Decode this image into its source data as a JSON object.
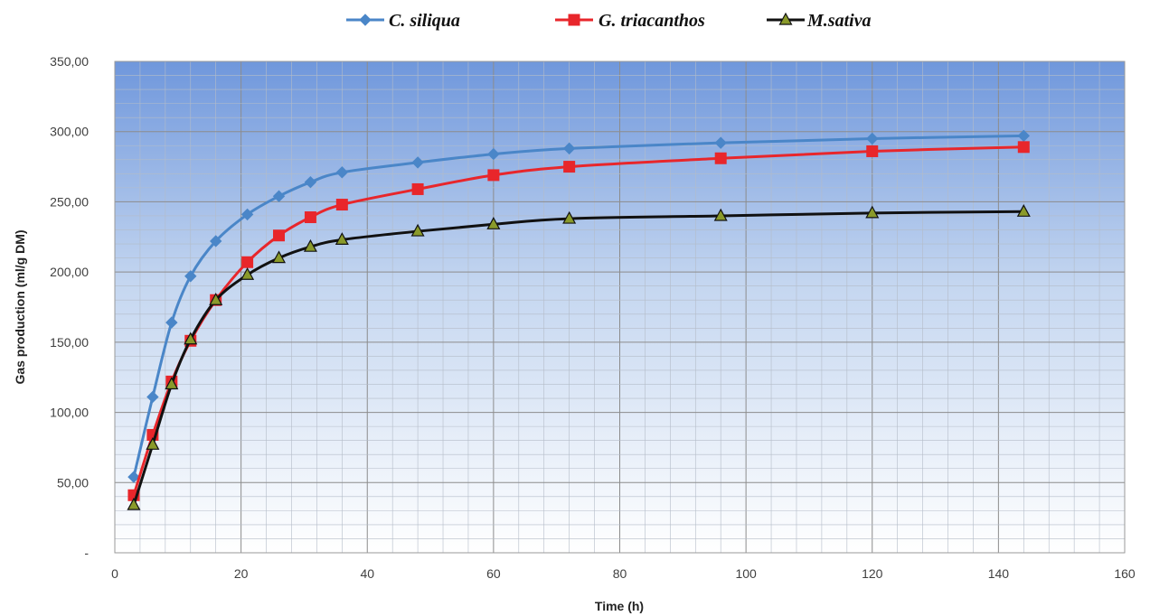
{
  "chart_data": {
    "type": "line",
    "title": "",
    "xlabel": "Time (h)",
    "ylabel": "Gas production  (ml/g DM)",
    "xlim": [
      0,
      160
    ],
    "ylim": [
      0,
      350
    ],
    "x_ticks": [
      0,
      20,
      40,
      60,
      80,
      100,
      120,
      140,
      160
    ],
    "x_tick_labels": [
      "0",
      "20",
      "40",
      "60",
      "80",
      "100",
      "120",
      "140",
      "160"
    ],
    "y_ticks": [
      0,
      50,
      100,
      150,
      200,
      250,
      300,
      350
    ],
    "y_tick_labels": [
      "-",
      "50,00",
      "100,00",
      "150,00",
      "200,00",
      "250,00",
      "300,00",
      "350,00"
    ],
    "grid": true,
    "legend_position": "top",
    "x": [
      3,
      6,
      9,
      12,
      16,
      21,
      26,
      31,
      36,
      48,
      60,
      72,
      96,
      120,
      144
    ],
    "series": [
      {
        "name": "C. siliqua",
        "color": "#4a86c8",
        "marker": "diamond",
        "values": [
          54,
          111,
          164,
          197,
          222,
          241,
          254,
          264,
          271,
          278,
          284,
          288,
          292,
          295,
          297
        ]
      },
      {
        "name": "G. triacanthos",
        "color": "#e8262b",
        "marker": "square",
        "values": [
          41,
          84,
          122,
          151,
          180,
          207,
          226,
          239,
          248,
          259,
          269,
          275,
          281,
          286,
          289
        ]
      },
      {
        "name": "M.sativa",
        "color": "#111111",
        "marker": "triangle",
        "marker_fill": "#8a9a2a",
        "values": [
          34,
          77,
          120,
          152,
          180,
          198,
          210,
          218,
          223,
          229,
          234,
          238,
          240,
          242,
          243
        ]
      }
    ]
  }
}
